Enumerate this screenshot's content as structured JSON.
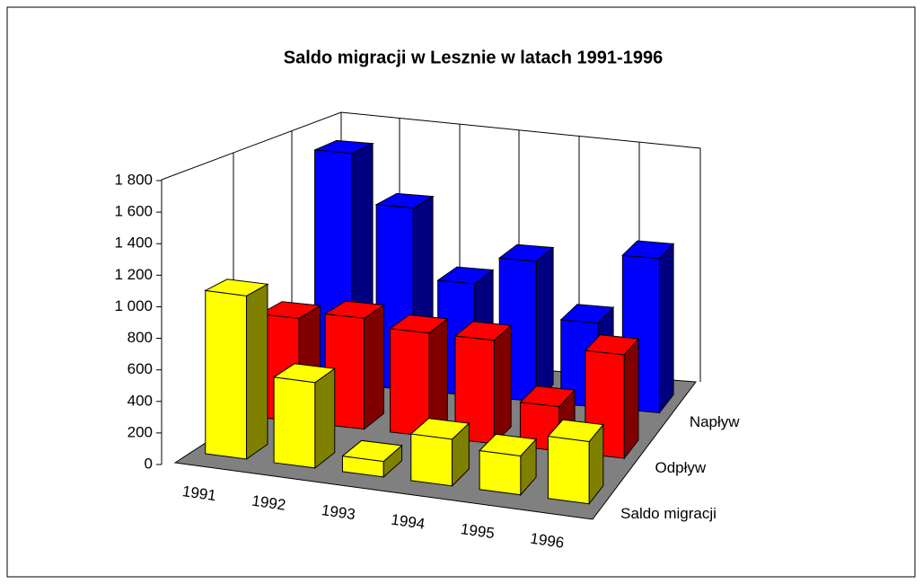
{
  "chart_data": {
    "type": "bar3d",
    "title": "Saldo  migracji w Lesznie w latach 1991-1996",
    "categories": [
      "1991",
      "1992",
      "1993",
      "1994",
      "1995",
      "1996"
    ],
    "series": [
      {
        "name": "Saldo  migracji",
        "color": "#ffff00",
        "values": [
          1050,
          550,
          100,
          300,
          250,
          400
        ]
      },
      {
        "name": "Odpływ",
        "color": "#ff0000",
        "values": [
          700,
          750,
          700,
          700,
          300,
          700
        ]
      },
      {
        "name": "Napływ",
        "color": "#0000ff",
        "values": [
          1650,
          1300,
          800,
          1000,
          600,
          1100
        ]
      }
    ],
    "ylim": [
      0,
      1800
    ],
    "yticks": [
      0,
      200,
      400,
      600,
      800,
      {
        "value": 1000,
        "label": "1 000"
      },
      {
        "value": 1200,
        "label": "1 200"
      },
      {
        "value": 1400,
        "label": "1 400"
      },
      {
        "value": 1600,
        "label": "1 600"
      },
      {
        "value": 1800,
        "label": "1 800"
      }
    ],
    "grid": false
  }
}
